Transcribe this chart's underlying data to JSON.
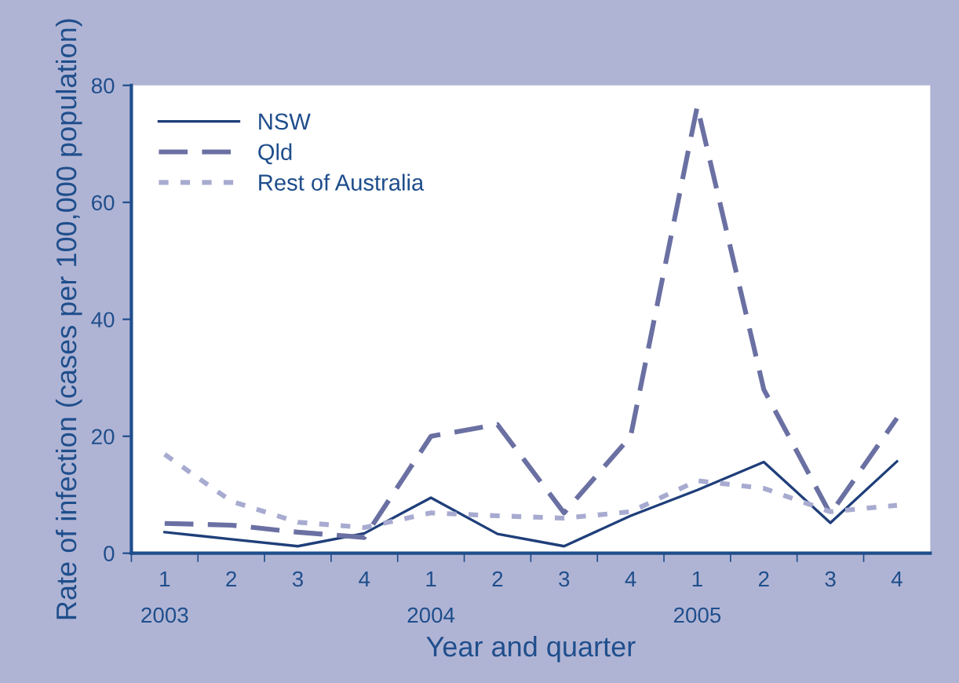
{
  "chart_data": {
    "type": "line",
    "xlabel": "Year and quarter",
    "ylabel": "Rate of infection (cases per 100,000 population)",
    "categories": [
      "1\n2003",
      "2",
      "3",
      "4",
      "1\n2004",
      "2",
      "3",
      "4",
      "1\n2005",
      "2",
      "3",
      "4"
    ],
    "series": [
      {
        "name": "NSW",
        "color": "#1f3f7a",
        "line_style": "solid",
        "values": [
          3.6,
          2.4,
          1.2,
          3.4,
          9.5,
          3.3,
          1.2,
          6.4,
          10.8,
          15.6,
          5.2,
          15.7
        ]
      },
      {
        "name": "Qld",
        "color": "#6b70a3",
        "line_style": "dashed",
        "values": [
          5.1,
          4.8,
          3.6,
          2.7,
          20,
          22,
          6.9,
          20,
          76.4,
          28,
          6.7,
          23.1
        ]
      },
      {
        "name": "Rest of Australia",
        "color": "#a8abd0",
        "line_style": "dotted",
        "values": [
          16.9,
          8.9,
          5.3,
          4.4,
          6.9,
          6.4,
          6.0,
          7.1,
          12.4,
          11.1,
          7.1,
          8.2
        ]
      }
    ],
    "ylim": [
      0,
      80
    ],
    "yticks": [
      0,
      20,
      40,
      60,
      80
    ],
    "grid": false,
    "legend": "top left",
    "marker": "none"
  }
}
